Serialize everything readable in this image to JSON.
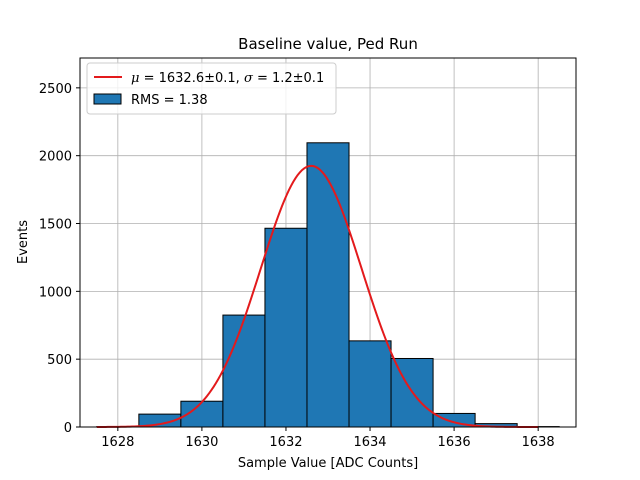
{
  "chart_data": {
    "type": "bar",
    "title": "Baseline value, Ped Run",
    "xlabel": "Sample Value [ADC Counts]",
    "ylabel": "Events",
    "xlim": [
      1627.1,
      1638.9
    ],
    "ylim": [
      0,
      2720
    ],
    "xticks": [
      1628,
      1630,
      1632,
      1634,
      1636,
      1638
    ],
    "yticks": [
      0,
      500,
      1000,
      1500,
      2000,
      2500
    ],
    "grid": true,
    "legend_position": "top-left",
    "bar_color": "#1f77b4",
    "curve_color": "#e31a1c",
    "histogram": {
      "name": "RMS = 1.38",
      "bin_edges": [
        1627.5,
        1628.5,
        1629.5,
        1630.5,
        1631.5,
        1632.5,
        1633.5,
        1634.5,
        1635.5,
        1636.5,
        1637.5,
        1638.5
      ],
      "counts": [
        3,
        95,
        190,
        825,
        1465,
        2095,
        635,
        505,
        100,
        25,
        3
      ]
    },
    "fit": {
      "name": "μ = 1632.6±0.1, σ = 1.2±0.1",
      "mu": 1632.6,
      "sigma": 1.2,
      "amplitude": 1925,
      "x_range": [
        1627.5,
        1638.0
      ]
    },
    "legend": [
      {
        "label_parts": [
          [
            "μ",
            "it"
          ],
          [
            " = 1632.6±0.1, ",
            ""
          ],
          [
            "σ",
            "it"
          ],
          [
            " = 1.2±0.1",
            ""
          ]
        ],
        "kind": "line"
      },
      {
        "label_parts": [
          [
            "RMS = 1.38",
            ""
          ]
        ],
        "kind": "patch"
      }
    ]
  }
}
